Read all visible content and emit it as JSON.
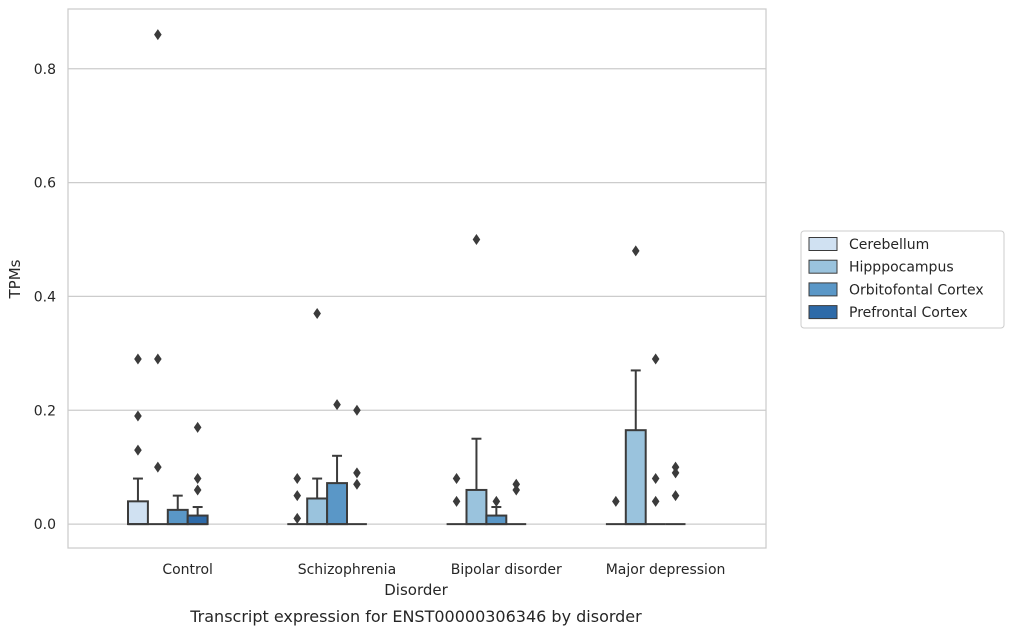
{
  "chart_data": {
    "type": "box",
    "title": "",
    "caption": "Transcript expression for ENST00000306346 by disorder",
    "xlabel": "Disorder",
    "ylabel": "TPMs",
    "ylim": [
      -0.042,
      0.905
    ],
    "yticks": [
      0.0,
      0.2,
      0.4,
      0.6,
      0.8
    ],
    "ytick_labels": [
      "0.0",
      "0.2",
      "0.4",
      "0.6",
      "0.8"
    ],
    "categories": [
      "Control",
      "Schizophrenia",
      "Bipolar disorder",
      "Major depression"
    ],
    "grid": true,
    "legend_position": "right",
    "series": [
      {
        "name": "Cerebellum",
        "color": "#d0e1f2",
        "boxes": [
          {
            "q1": 0.0,
            "median": 0.0,
            "q3": 0.04,
            "whisker_low": 0.0,
            "whisker_high": 0.08,
            "outliers": [
              0.13,
              0.19,
              0.29
            ]
          },
          {
            "q1": 0.0,
            "median": 0.0,
            "q3": 0.0,
            "whisker_low": 0.0,
            "whisker_high": 0.0,
            "outliers": [
              0.01,
              0.05,
              0.08
            ]
          },
          {
            "q1": 0.0,
            "median": 0.0,
            "q3": 0.0,
            "whisker_low": 0.0,
            "whisker_high": 0.0,
            "outliers": [
              0.04,
              0.08
            ]
          },
          {
            "q1": 0.0,
            "median": 0.0,
            "q3": 0.0,
            "whisker_low": 0.0,
            "whisker_high": 0.0,
            "outliers": [
              0.04
            ]
          }
        ]
      },
      {
        "name": "Hipppocampus",
        "color": "#9ac3dd",
        "boxes": [
          {
            "q1": 0.0,
            "median": 0.0,
            "q3": 0.0,
            "whisker_low": 0.0,
            "whisker_high": 0.0,
            "outliers": [
              0.1,
              0.29,
              0.86
            ]
          },
          {
            "q1": 0.0,
            "median": 0.0,
            "q3": 0.045,
            "whisker_low": 0.0,
            "whisker_high": 0.08,
            "outliers": [
              0.37
            ]
          },
          {
            "q1": 0.0,
            "median": 0.0,
            "q3": 0.06,
            "whisker_low": 0.0,
            "whisker_high": 0.15,
            "outliers": [
              0.5
            ]
          },
          {
            "q1": 0.0,
            "median": 0.0,
            "q3": 0.165,
            "whisker_low": 0.0,
            "whisker_high": 0.27,
            "outliers": [
              0.48
            ]
          }
        ]
      },
      {
        "name": "Orbitofontal Cortex",
        "color": "#5a97c7",
        "boxes": [
          {
            "q1": 0.0,
            "median": 0.0,
            "q3": 0.025,
            "whisker_low": 0.0,
            "whisker_high": 0.05,
            "outliers": []
          },
          {
            "q1": 0.0,
            "median": 0.0,
            "q3": 0.072,
            "whisker_low": 0.0,
            "whisker_high": 0.12,
            "outliers": [
              0.21
            ]
          },
          {
            "q1": 0.0,
            "median": 0.0,
            "q3": 0.015,
            "whisker_low": 0.0,
            "whisker_high": 0.03,
            "outliers": [
              0.04
            ]
          },
          {
            "q1": 0.0,
            "median": 0.0,
            "q3": 0.0,
            "whisker_low": 0.0,
            "whisker_high": 0.0,
            "outliers": [
              0.04,
              0.08,
              0.29
            ]
          }
        ]
      },
      {
        "name": "Prefrontal Cortex",
        "color": "#2d6aa8",
        "boxes": [
          {
            "q1": 0.0,
            "median": 0.0,
            "q3": 0.015,
            "whisker_low": 0.0,
            "whisker_high": 0.03,
            "outliers": [
              0.06,
              0.08,
              0.17
            ]
          },
          {
            "q1": 0.0,
            "median": 0.0,
            "q3": 0.0,
            "whisker_low": 0.0,
            "whisker_high": 0.0,
            "outliers": [
              0.07,
              0.09,
              0.2
            ]
          },
          {
            "q1": 0.0,
            "median": 0.0,
            "q3": 0.0,
            "whisker_low": 0.0,
            "whisker_high": 0.0,
            "outliers": [
              0.06,
              0.07
            ]
          },
          {
            "q1": 0.0,
            "median": 0.0,
            "q3": 0.0,
            "whisker_low": 0.0,
            "whisker_high": 0.0,
            "outliers": [
              0.05,
              0.09,
              0.1
            ]
          }
        ]
      }
    ]
  }
}
